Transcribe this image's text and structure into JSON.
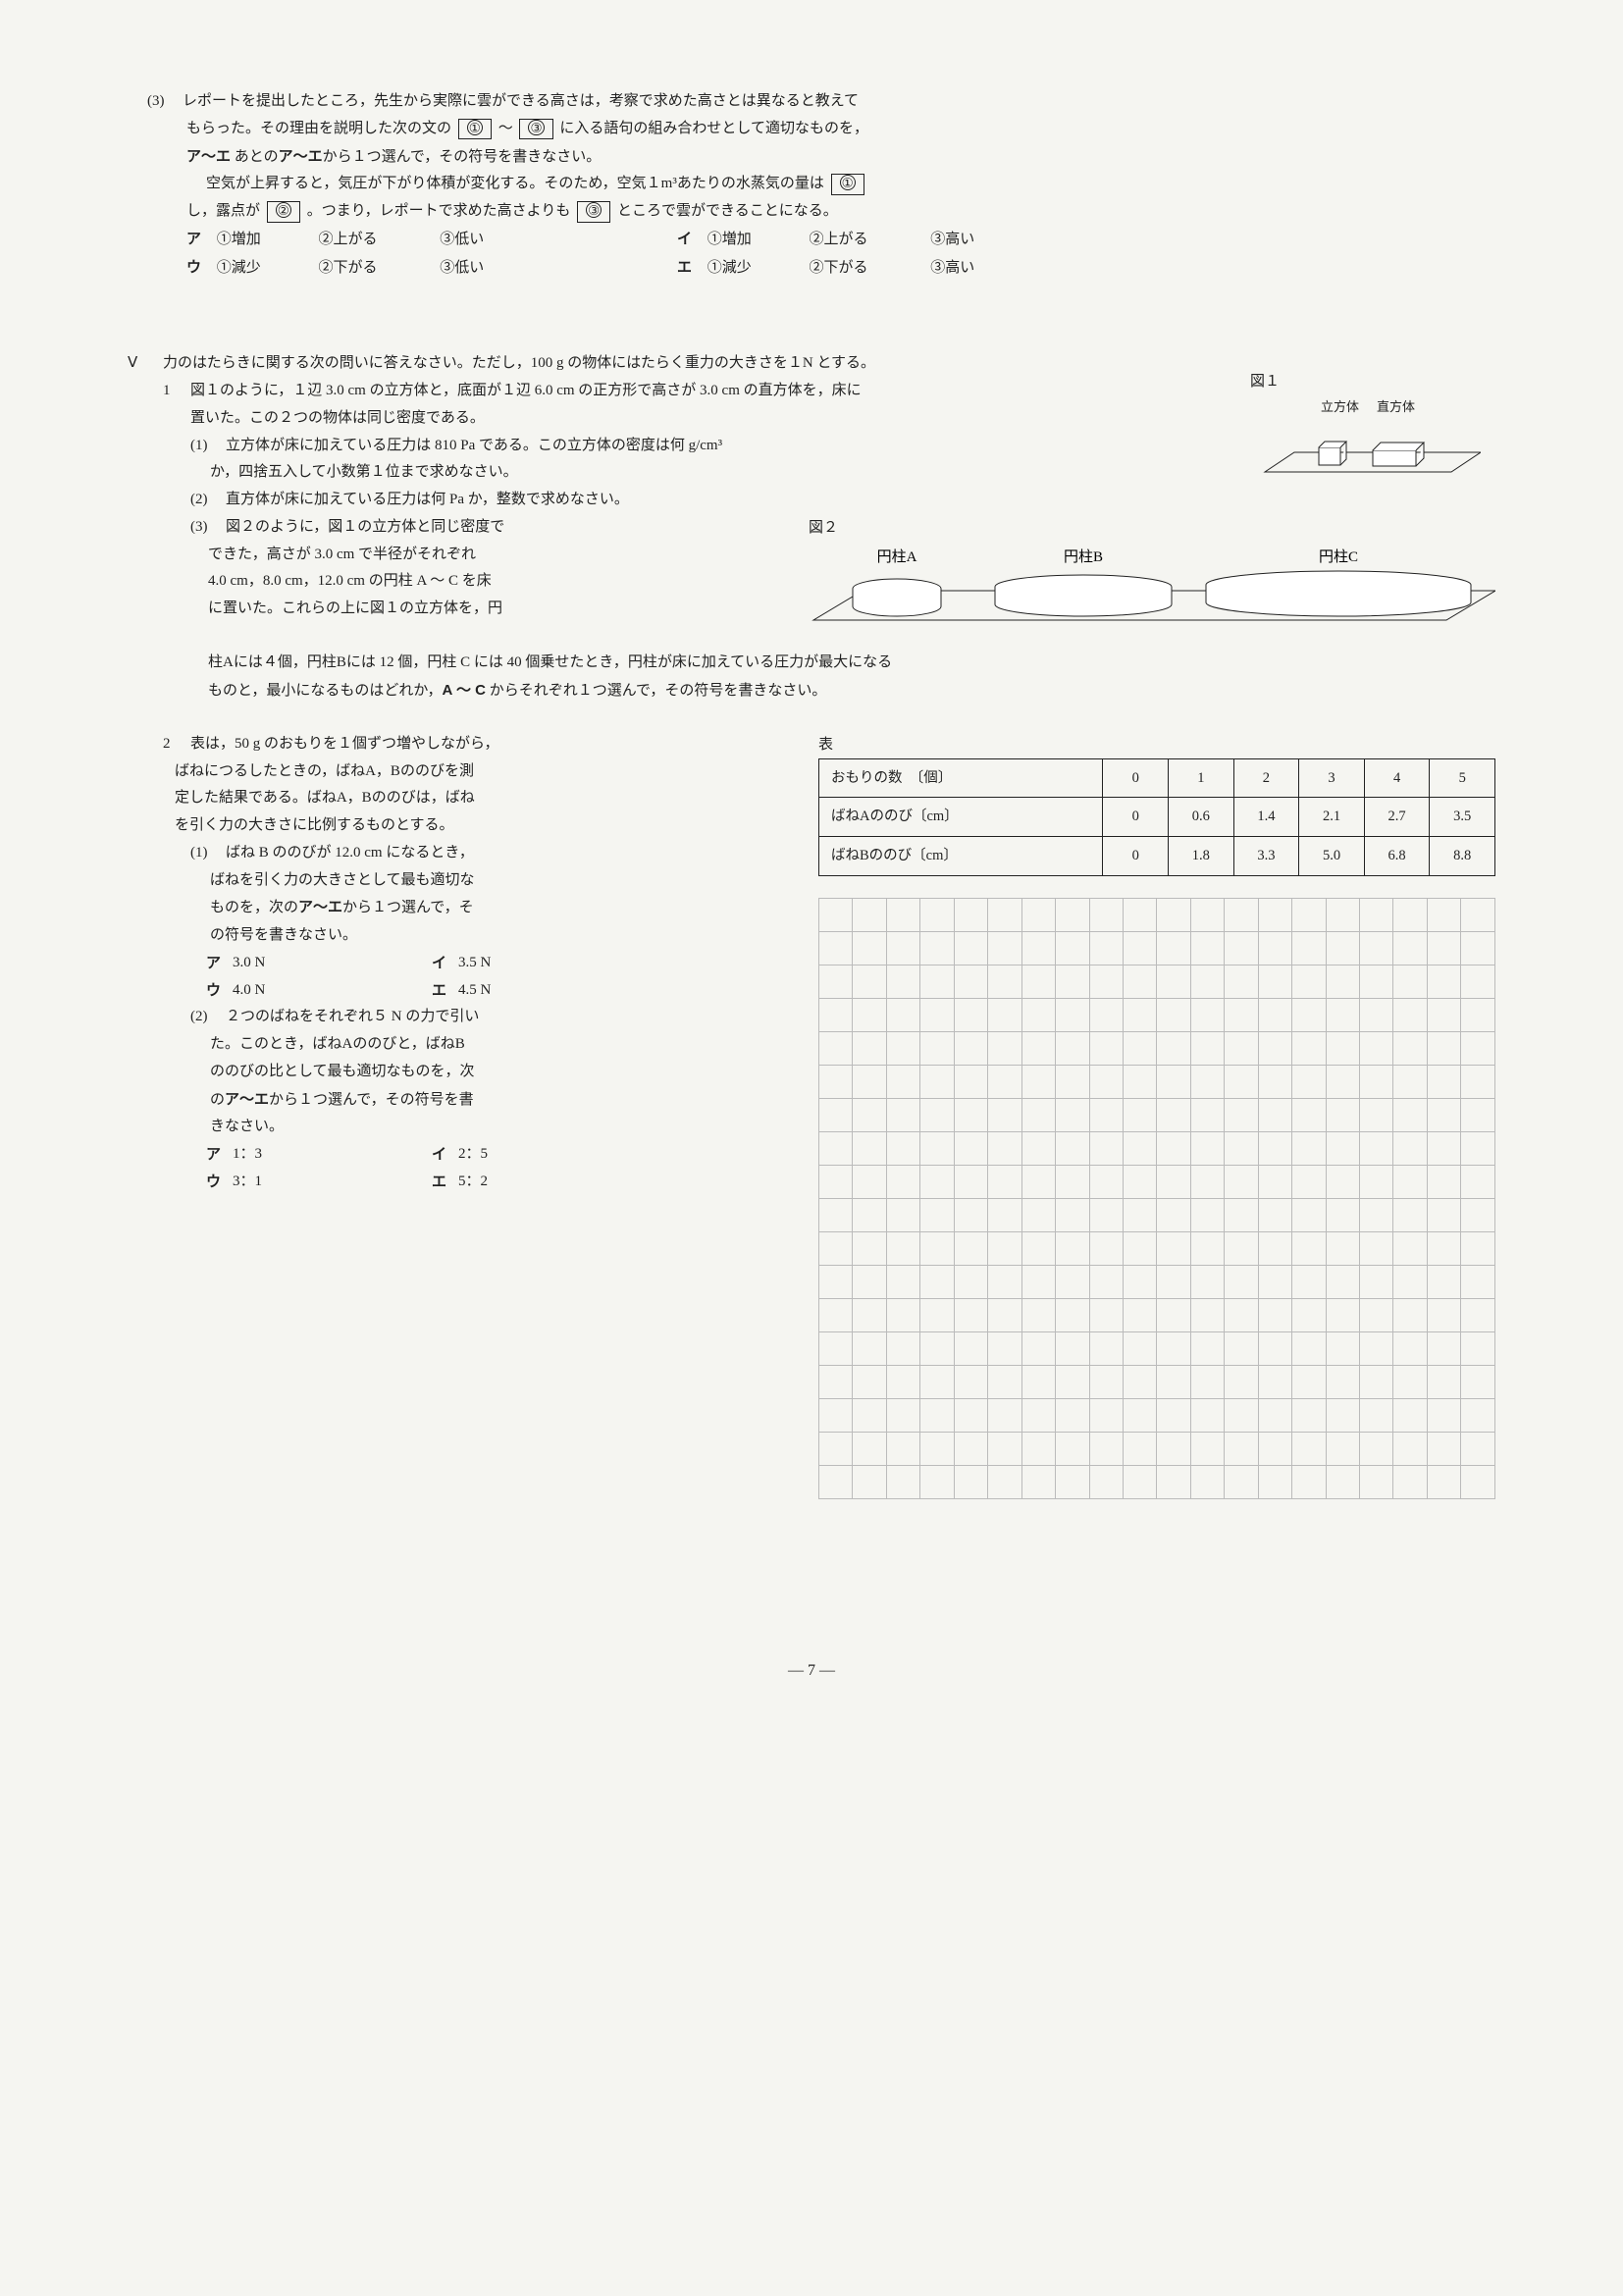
{
  "q3": {
    "num": "(3)",
    "body1": "レポートを提出したところ，先生から実際に雲ができる高さは，考察で求めた高さとは異なると教えて",
    "body2_prefix": "もらった。その理由を説明した次の文の",
    "body2_range_sep": "～",
    "body2_suffix": "に入る語句の組み合わせとして適切なものを，",
    "body3": "あとのア～エから１つ選んで，その符号を書きなさい。",
    "fill1": "空気が上昇すると，気圧が下がり体積が変化する。そのため，空気１m³あたりの水蒸気の量は",
    "fill2a": "し，露点が",
    "fill2b": "。つまり，レポートで求めた高さよりも",
    "fill2c": "ところで雲ができることになる。",
    "blanks": {
      "b1": "①",
      "b2": "②",
      "b3": "③"
    },
    "choices": {
      "a": {
        "l": "ア",
        "c1": "①増加",
        "c2": "②上がる",
        "c3": "③低い"
      },
      "i": {
        "l": "イ",
        "c1": "①増加",
        "c2": "②上がる",
        "c3": "③高い"
      },
      "u": {
        "l": "ウ",
        "c1": "①減少",
        "c2": "②下がる",
        "c3": "③低い"
      },
      "e": {
        "l": "エ",
        "c1": "①減少",
        "c2": "②下がる",
        "c3": "③高い"
      }
    }
  },
  "v": {
    "num": "Ⅴ",
    "intro": "力のはたらきに関する次の問いに答えなさい。ただし，100 g の物体にはたらく重力の大きさを１N とする。",
    "p1": {
      "num": "1",
      "lead1": "図１のように，１辺 3.0 cm の立方体と，底面が１辺 6.0 cm の正方形で高さが 3.0 cm の直方体を，床に",
      "lead2": "置いた。この２つの物体は同じ密度である。",
      "fig1": {
        "title": "図１",
        "cube": "立方体",
        "box": "直方体"
      },
      "s1": {
        "n": "(1)",
        "a": "立方体が床に加えている圧力は 810 Pa である。この立方体の密度は何 g/cm³",
        "b": "か，四捨五入して小数第１位まで求めなさい。"
      },
      "s2": {
        "n": "(2)",
        "t": "直方体が床に加えている圧力は何 Pa か，整数で求めなさい。"
      },
      "s3": {
        "n": "(3)",
        "a": "図２のように，図１の立方体と同じ密度で",
        "b": "できた，高さが 3.0 cm で半径がそれぞれ",
        "c": "4.0 cm，8.0 cm，12.0 cm の円柱 A ～ C を床",
        "d": "に置いた。これらの上に図１の立方体を，円",
        "e": "柱Aには４個，円柱Bには 12 個，円柱 C には 40 個乗せたとき，円柱が床に加えている圧力が最大になる",
        "f": "ものと，最小になるものはどれか，A ～ C からそれぞれ１つ選んで，その符号を書きなさい。"
      },
      "fig2": {
        "title": "図２",
        "a": "円柱A",
        "b": "円柱B",
        "c": "円柱C"
      }
    },
    "p2": {
      "num": "2",
      "lead1": "表は，50 g のおもりを１個ずつ増やしながら，",
      "lead2": "ばねにつるしたときの，ばねA，Bののびを測",
      "lead3": "定した結果である。ばねA，Bののびは，ばね",
      "lead4": "を引く力の大きさに比例するものとする。",
      "s1": {
        "n": "(1)",
        "a": "ばね B ののびが 12.0 cm になるとき，",
        "b": "ばねを引く力の大きさとして最も適切な",
        "c": "ものを，次のア～エから１つ選んで，そ",
        "d": "の符号を書きなさい。",
        "ch": {
          "a": {
            "l": "ア",
            "v": "3.0 N"
          },
          "i": {
            "l": "イ",
            "v": "3.5 N"
          },
          "u": {
            "l": "ウ",
            "v": "4.0 N"
          },
          "e": {
            "l": "エ",
            "v": "4.5 N"
          }
        }
      },
      "s2": {
        "n": "(2)",
        "a": "２つのばねをそれぞれ５ N の力で引い",
        "b": "た。このとき，ばねAののびと，ばねB",
        "c": "ののびの比として最も適切なものを，次",
        "d": "のア～エから１つ選んで，その符号を書",
        "e": "きなさい。",
        "ch": {
          "a": {
            "l": "ア",
            "v": "1：3"
          },
          "i": {
            "l": "イ",
            "v": "2：5"
          },
          "u": {
            "l": "ウ",
            "v": "3：1"
          },
          "e": {
            "l": "エ",
            "v": "5：2"
          }
        }
      },
      "table": {
        "title": "表",
        "r0": "おもりの数　〔個〕",
        "r1": "ばねAののび〔cm〕",
        "r2": "ばねBののび〔cm〕",
        "h": [
          "0",
          "1",
          "2",
          "3",
          "4",
          "5"
        ],
        "a": [
          "0",
          "0.6",
          "1.4",
          "2.1",
          "2.7",
          "3.5"
        ],
        "b": [
          "0",
          "1.8",
          "3.3",
          "5.0",
          "6.8",
          "8.8"
        ]
      },
      "grid": {
        "rows": 18,
        "cols": 20
      }
    }
  },
  "page": "— 7 —"
}
